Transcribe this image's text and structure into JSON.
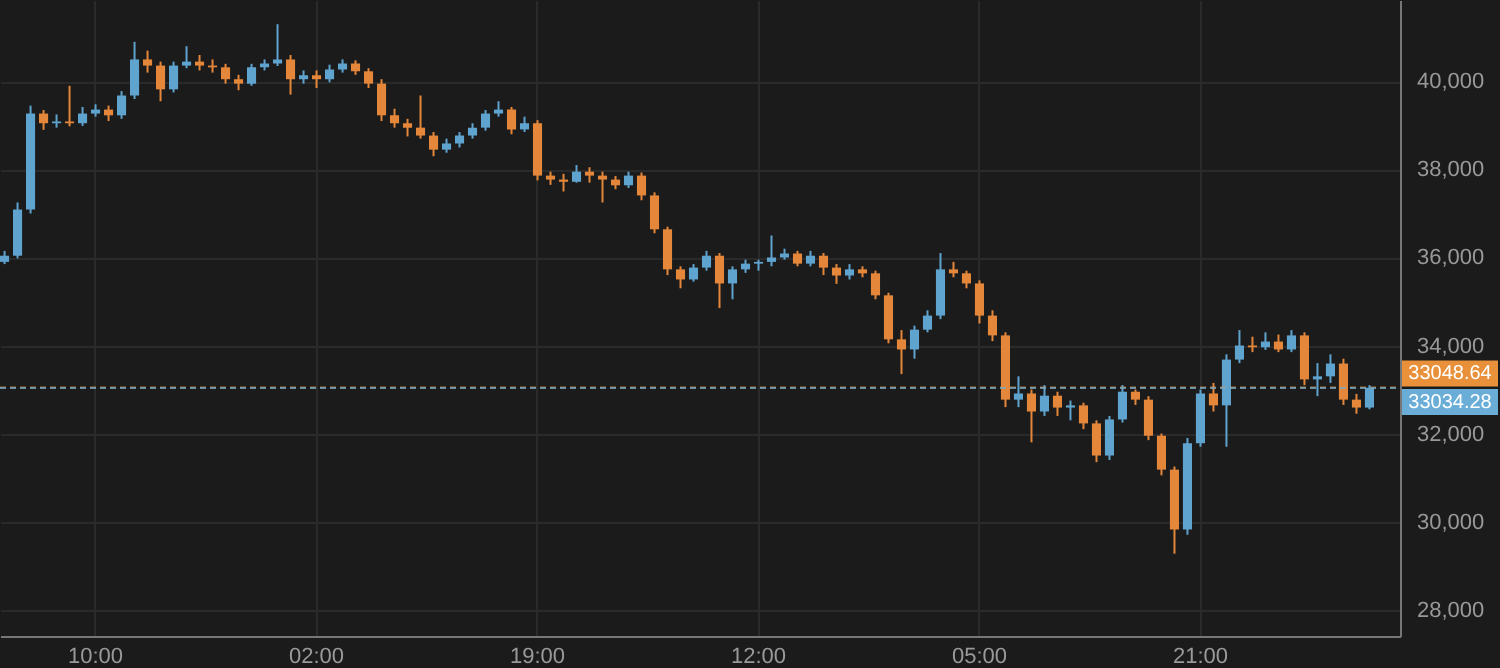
{
  "chart_data": {
    "type": "candlestick",
    "categories": [
      null,
      null,
      null,
      null,
      null,
      null,
      null,
      "10:00",
      null,
      null,
      null,
      null,
      null,
      null,
      null,
      null,
      null,
      null,
      null,
      null,
      null,
      null,
      null,
      null,
      "02:00",
      null,
      null,
      null,
      null,
      null,
      null,
      null,
      null,
      null,
      null,
      null,
      null,
      null,
      null,
      null,
      null,
      "19:00",
      null,
      null,
      null,
      null,
      null,
      null,
      null,
      null,
      null,
      null,
      null,
      null,
      null,
      null,
      null,
      null,
      "12:00",
      null,
      null,
      null,
      null,
      null,
      null,
      null,
      null,
      null,
      null,
      null,
      null,
      null,
      null,
      null,
      null,
      "05:00",
      null,
      null,
      null,
      null,
      null,
      null,
      null,
      null,
      null,
      null,
      null,
      null,
      null,
      null,
      null,
      null,
      "21:00",
      null,
      null,
      null,
      null,
      null,
      null,
      null,
      null,
      null,
      null,
      null,
      null,
      null
    ],
    "ohlc": [
      [
        35900,
        36150,
        35850,
        36040
      ],
      [
        36040,
        37250,
        35980,
        37090
      ],
      [
        37090,
        39450,
        37000,
        39270
      ],
      [
        39270,
        39350,
        38900,
        39050
      ],
      [
        39050,
        39250,
        38950,
        39090
      ],
      [
        39090,
        39900,
        38980,
        39050
      ],
      [
        39050,
        39420,
        38990,
        39270
      ],
      [
        39270,
        39480,
        39200,
        39360
      ],
      [
        39360,
        39450,
        39100,
        39230
      ],
      [
        39230,
        39780,
        39150,
        39680
      ],
      [
        39680,
        40900,
        39600,
        40500
      ],
      [
        40500,
        40700,
        40200,
        40360
      ],
      [
        40360,
        40450,
        39550,
        39820
      ],
      [
        39820,
        40450,
        39750,
        40360
      ],
      [
        40360,
        40800,
        40300,
        40450
      ],
      [
        40450,
        40600,
        40250,
        40360
      ],
      [
        40360,
        40500,
        40200,
        40320
      ],
      [
        40320,
        40400,
        39950,
        40050
      ],
      [
        40050,
        40150,
        39800,
        39950
      ],
      [
        39950,
        40400,
        39900,
        40320
      ],
      [
        40320,
        40500,
        40250,
        40410
      ],
      [
        40410,
        41300,
        40350,
        40500
      ],
      [
        40500,
        40600,
        39700,
        40050
      ],
      [
        40050,
        40250,
        39950,
        40140
      ],
      [
        40140,
        40250,
        39850,
        40050
      ],
      [
        40050,
        40380,
        39980,
        40270
      ],
      [
        40270,
        40500,
        40200,
        40410
      ],
      [
        40410,
        40480,
        40150,
        40230
      ],
      [
        40230,
        40300,
        39850,
        39950
      ],
      [
        39950,
        40050,
        39100,
        39230
      ],
      [
        39230,
        39380,
        38950,
        39050
      ],
      [
        39050,
        39150,
        38750,
        38950
      ],
      [
        38950,
        39680,
        38700,
        38770
      ],
      [
        38770,
        38850,
        38300,
        38450
      ],
      [
        38450,
        38700,
        38380,
        38590
      ],
      [
        38590,
        38850,
        38500,
        38770
      ],
      [
        38770,
        39050,
        38700,
        38950
      ],
      [
        38950,
        39350,
        38880,
        39270
      ],
      [
        39270,
        39550,
        39200,
        39360
      ],
      [
        39360,
        39420,
        38800,
        38910
      ],
      [
        38910,
        39200,
        38850,
        39050
      ],
      [
        39050,
        39120,
        37750,
        37860
      ],
      [
        37860,
        37950,
        37650,
        37770
      ],
      [
        37770,
        37900,
        37500,
        37720
      ],
      [
        37720,
        38100,
        37700,
        37950
      ],
      [
        37950,
        38050,
        37700,
        37860
      ],
      [
        37860,
        37950,
        37250,
        37770
      ],
      [
        37770,
        37850,
        37550,
        37640
      ],
      [
        37640,
        37950,
        37580,
        37860
      ],
      [
        37860,
        37930,
        37300,
        37410
      ],
      [
        37410,
        37480,
        36550,
        36640
      ],
      [
        36640,
        36700,
        35600,
        35730
      ],
      [
        35730,
        35800,
        35300,
        35500
      ],
      [
        35500,
        35850,
        35450,
        35770
      ],
      [
        35770,
        36150,
        35700,
        36040
      ],
      [
        36040,
        36100,
        34850,
        35410
      ],
      [
        35410,
        35800,
        35050,
        35730
      ],
      [
        35730,
        35950,
        35650,
        35860
      ],
      [
        35860,
        35950,
        35700,
        35900
      ],
      [
        35900,
        36500,
        35800,
        36000
      ],
      [
        36000,
        36200,
        35950,
        36090
      ],
      [
        36090,
        36150,
        35800,
        35860
      ],
      [
        35860,
        36150,
        35800,
        36040
      ],
      [
        36040,
        36100,
        35600,
        35770
      ],
      [
        35770,
        35850,
        35400,
        35590
      ],
      [
        35590,
        35850,
        35500,
        35730
      ],
      [
        35730,
        35800,
        35550,
        35640
      ],
      [
        35640,
        35700,
        35050,
        35140
      ],
      [
        35140,
        35200,
        34050,
        34140
      ],
      [
        34140,
        34350,
        33350,
        33910
      ],
      [
        33910,
        34450,
        33700,
        34360
      ],
      [
        34360,
        34800,
        34300,
        34680
      ],
      [
        34680,
        36100,
        34600,
        35730
      ],
      [
        35730,
        35900,
        35550,
        35640
      ],
      [
        35640,
        35700,
        35300,
        35410
      ],
      [
        35410,
        35480,
        34500,
        34680
      ],
      [
        34680,
        34800,
        34100,
        34230
      ],
      [
        34230,
        34300,
        32600,
        32770
      ],
      [
        32770,
        33300,
        32600,
        32910
      ],
      [
        32910,
        33000,
        31800,
        32500
      ],
      [
        32500,
        33100,
        32400,
        32860
      ],
      [
        32860,
        32950,
        32400,
        32590
      ],
      [
        32590,
        32750,
        32300,
        32640
      ],
      [
        32640,
        32700,
        32100,
        32230
      ],
      [
        32230,
        32300,
        31350,
        31500
      ],
      [
        31500,
        32400,
        31400,
        32320
      ],
      [
        32320,
        33100,
        32250,
        32950
      ],
      [
        32950,
        33000,
        32650,
        32770
      ],
      [
        32770,
        32850,
        31850,
        31950
      ],
      [
        31950,
        32000,
        31050,
        31180
      ],
      [
        31180,
        31250,
        29270,
        29820
      ],
      [
        29820,
        31900,
        29700,
        31780
      ],
      [
        31780,
        33000,
        31700,
        32910
      ],
      [
        32910,
        33150,
        32500,
        32640
      ],
      [
        32640,
        33800,
        31700,
        33680
      ],
      [
        33680,
        34350,
        33600,
        34000
      ],
      [
        34000,
        34200,
        33850,
        33960
      ],
      [
        33960,
        34300,
        33900,
        34090
      ],
      [
        34090,
        34250,
        33850,
        33910
      ],
      [
        33910,
        34350,
        33850,
        34230
      ],
      [
        34230,
        34300,
        33100,
        33230
      ],
      [
        33230,
        33600,
        32850,
        33300
      ],
      [
        33300,
        33800,
        33150,
        33590
      ],
      [
        33590,
        33700,
        32650,
        32770
      ],
      [
        32770,
        32900,
        32450,
        32590
      ],
      [
        32590,
        33100,
        32550,
        33040
      ]
    ],
    "colors": [
      "#5fa3cf",
      "#5fa3cf",
      "#5fa3cf",
      "#e5873a",
      "#5fa3cf",
      "#e5873a",
      "#5fa3cf",
      "#5fa3cf",
      "#e5873a",
      "#5fa3cf",
      "#5fa3cf",
      "#e5873a",
      "#e5873a",
      "#5fa3cf",
      "#5fa3cf",
      "#e5873a",
      "#e5873a",
      "#e5873a",
      "#e5873a",
      "#5fa3cf",
      "#5fa3cf",
      "#5fa3cf",
      "#e5873a",
      "#5fa3cf",
      "#e5873a",
      "#5fa3cf",
      "#5fa3cf",
      "#e5873a",
      "#e5873a",
      "#e5873a",
      "#e5873a",
      "#e5873a",
      "#e5873a",
      "#e5873a",
      "#5fa3cf",
      "#5fa3cf",
      "#5fa3cf",
      "#5fa3cf",
      "#5fa3cf",
      "#e5873a",
      "#5fa3cf",
      "#e5873a",
      "#e5873a",
      "#e5873a",
      "#5fa3cf",
      "#e5873a",
      "#e5873a",
      "#e5873a",
      "#5fa3cf",
      "#e5873a",
      "#e5873a",
      "#e5873a",
      "#e5873a",
      "#5fa3cf",
      "#5fa3cf",
      "#e5873a",
      "#5fa3cf",
      "#5fa3cf",
      "#5fa3cf",
      "#5fa3cf",
      "#5fa3cf",
      "#e5873a",
      "#5fa3cf",
      "#e5873a",
      "#e5873a",
      "#5fa3cf",
      "#e5873a",
      "#e5873a",
      "#e5873a",
      "#e5873a",
      "#5fa3cf",
      "#5fa3cf",
      "#5fa3cf",
      "#e5873a",
      "#e5873a",
      "#e5873a",
      "#e5873a",
      "#e5873a",
      "#5fa3cf",
      "#e5873a",
      "#5fa3cf",
      "#e5873a",
      "#5fa3cf",
      "#e5873a",
      "#e5873a",
      "#5fa3cf",
      "#5fa3cf",
      "#e5873a",
      "#e5873a",
      "#e5873a",
      "#e5873a",
      "#5fa3cf",
      "#5fa3cf",
      "#e5873a",
      "#5fa3cf",
      "#5fa3cf",
      "#e5873a",
      "#5fa3cf",
      "#e5873a",
      "#5fa3cf",
      "#e5873a",
      "#5fa3cf",
      "#5fa3cf",
      "#e5873a",
      "#e5873a",
      "#5fa3cf"
    ],
    "ylim": [
      27400,
      41850
    ],
    "yticks": [
      {
        "value": 28000,
        "label": "28,000"
      },
      {
        "value": 30000,
        "label": "30,000"
      },
      {
        "value": 32000,
        "label": "32,000"
      },
      {
        "value": 34000,
        "label": "34,000"
      },
      {
        "value": 36000,
        "label": "36,000"
      },
      {
        "value": 38000,
        "label": "38,000"
      },
      {
        "value": 40000,
        "label": "40,000"
      }
    ],
    "grid": true,
    "ref_lines": [
      {
        "axis": "y",
        "value": 33048.64,
        "label": "33048.64",
        "color": "#e8913a",
        "line_style": "dashed"
      },
      {
        "axis": "y",
        "value": 33034.28,
        "label": "33034.28",
        "color": "#6aaed8",
        "line_style": "dashed"
      }
    ]
  }
}
